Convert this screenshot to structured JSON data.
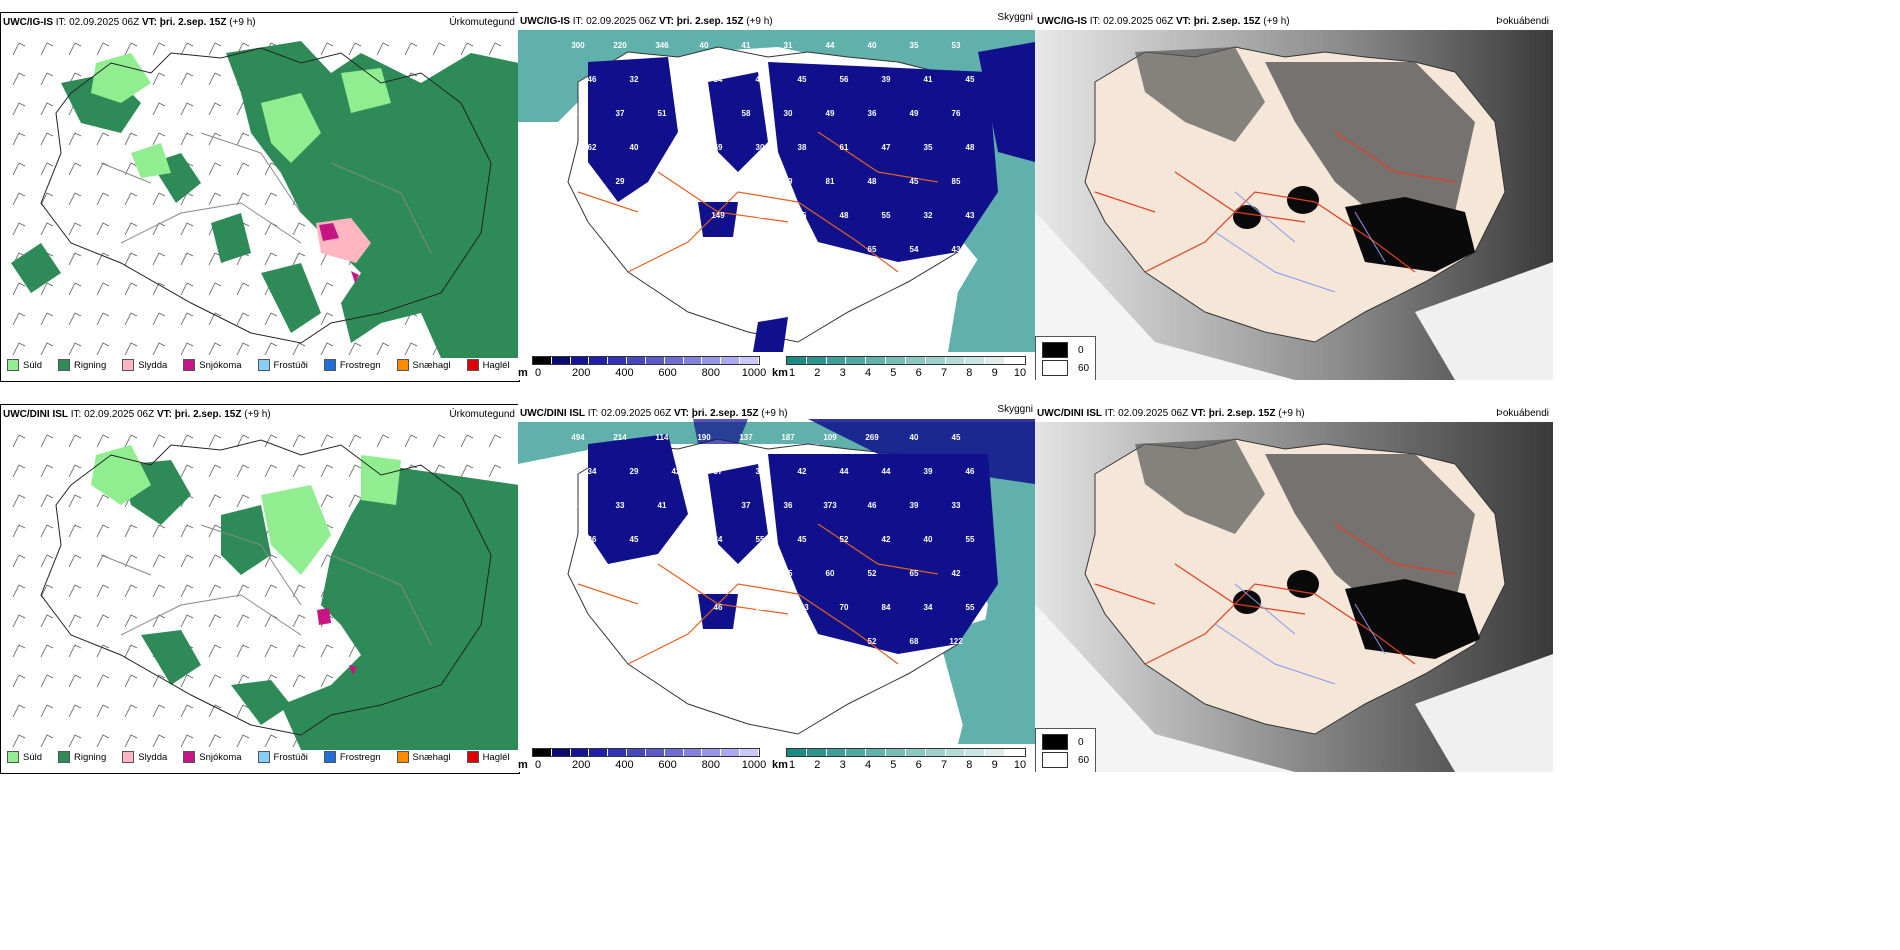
{
  "rows": [
    {
      "precip": {
        "model": "UWC/IG-IS",
        "it_label": "IT:",
        "it_value": "02.09.2025 06Z",
        "vt_label": "VT:",
        "vt_value": "þri. 2.sep. 15Z",
        "lead": "(+9 h)",
        "title": "Úrkomutegund"
      },
      "cloud": {
        "model": "UWC/IG-IS",
        "it_label": "IT:",
        "it_value": "02.09.2025 06Z",
        "vt_label": "VT:",
        "vt_value": "þri. 2.sep. 15Z",
        "lead": "(+9 h)",
        "title": "Skyggni",
        "labels": [
          "300",
          "220",
          "346",
          "40",
          "41",
          "31",
          "44",
          "40",
          "35",
          "53",
          "46",
          "32",
          "43",
          "34",
          "46",
          "45",
          "56",
          "39",
          "41",
          "45",
          "38",
          "37",
          "51",
          "32",
          "58",
          "30",
          "49",
          "36",
          "49",
          "76",
          "62",
          "40",
          "46",
          "59",
          "30",
          "38",
          "61",
          "47",
          "35",
          "48",
          "46",
          "29",
          "45",
          "40",
          "43",
          "59",
          "81",
          "48",
          "45",
          "85",
          "60",
          "59",
          "368",
          "149",
          "42",
          "56",
          "48",
          "55",
          "32",
          "43",
          "64",
          "32",
          "37",
          "41",
          "74",
          "50",
          "53",
          "65",
          "54",
          "43",
          "72",
          "92",
          "78",
          "95",
          "86",
          "284"
        ]
      },
      "fog": {
        "model": "UWC/IG-IS",
        "it_label": "IT:",
        "it_value": "02.09.2025 06Z",
        "vt_label": "VT:",
        "vt_value": "þri. 2.sep. 15Z",
        "lead": "(+9 h)",
        "title": "Þokuábendi"
      }
    },
    {
      "precip": {
        "model": "UWC/DINI ISL",
        "it_label": "IT:",
        "it_value": "02.09.2025 06Z",
        "vt_label": "VT:",
        "vt_value": "þri. 2.sep. 15Z",
        "lead": "(+9 h)",
        "title": "Úrkomutegund"
      },
      "cloud": {
        "model": "UWC/DINI ISL",
        "it_label": "IT:",
        "it_value": "02.09.2025 06Z",
        "vt_label": "VT:",
        "vt_value": "þri. 2.sep. 15Z",
        "lead": "(+9 h)",
        "title": "Skyggni",
        "labels": [
          "494",
          "214",
          "114",
          "190",
          "137",
          "187",
          "109",
          "269",
          "40",
          "45",
          "34",
          "29",
          "42",
          "37",
          "33",
          "42",
          "44",
          "44",
          "39",
          "46",
          "33",
          "33",
          "41",
          "36",
          "37",
          "36",
          "373",
          "46",
          "39",
          "33",
          "26",
          "45",
          "32",
          "34",
          "55",
          "45",
          "52",
          "42",
          "40",
          "55",
          "31",
          "55",
          "44",
          "35",
          "32",
          "35",
          "60",
          "52",
          "65",
          "42",
          "55",
          "49",
          "56",
          "46",
          "52",
          "283",
          "70",
          "84",
          "34",
          "55",
          "32",
          "39",
          "47",
          "44",
          "36",
          "49",
          "92",
          "52",
          "68",
          "122",
          "123",
          "66",
          "277",
          "120"
        ]
      },
      "fog": {
        "model": "UWC/DINI ISL",
        "it_label": "IT:",
        "it_value": "02.09.2025 06Z",
        "vt_label": "VT:",
        "vt_value": "þri. 2.sep. 15Z",
        "lead": "(+9 h)",
        "title": "Þokuábendi"
      }
    }
  ],
  "precip_legend": [
    {
      "label": "Súld",
      "color": "#90ee90"
    },
    {
      "label": "Rigning",
      "color": "#2e8b57"
    },
    {
      "label": "Slydda",
      "color": "#ffb6c1"
    },
    {
      "label": "Snjókoma",
      "color": "#c71585"
    },
    {
      "label": "Frostúði",
      "color": "#87cefa"
    },
    {
      "label": "Frostregn",
      "color": "#1e6fd9"
    },
    {
      "label": "Snæhagl",
      "color": "#ff8c00"
    },
    {
      "label": "Haglél",
      "color": "#e00000"
    }
  ],
  "cloudbase_scale": {
    "unit": "m",
    "ticks": [
      "0",
      "200",
      "400",
      "600",
      "800",
      "1000"
    ],
    "colors": [
      "#000000",
      "#0a0a6e",
      "#141496",
      "#1e1eaa",
      "#3232b4",
      "#4646be",
      "#5a5ac8",
      "#6e6ed2",
      "#8282dc",
      "#9696e6",
      "#aaaaf0",
      "#c8c8ff"
    ]
  },
  "visibility_scale": {
    "unit": "km",
    "ticks": [
      "1",
      "2",
      "3",
      "4",
      "5",
      "6",
      "7",
      "8",
      "9",
      "10"
    ],
    "colors": [
      "#1f8a84",
      "#2e948e",
      "#3e9e98",
      "#50a8a2",
      "#62b2ac",
      "#76bcb7",
      "#8ac6c2",
      "#9fd0cc",
      "#b4dad7",
      "#c9e4e2",
      "#dfeeed",
      "#ffffff"
    ]
  },
  "fog_legend": [
    {
      "label": "0",
      "color": "#000000"
    },
    {
      "label": "60",
      "color": "#ffffff"
    }
  ],
  "colors": {
    "land_fill": "#f5e6d8",
    "road": "#e06020",
    "rain": "#2e8b57",
    "drizzle": "#90ee90",
    "cloud_blue": "#10108c",
    "vis_teal": "#4fa8a2"
  }
}
